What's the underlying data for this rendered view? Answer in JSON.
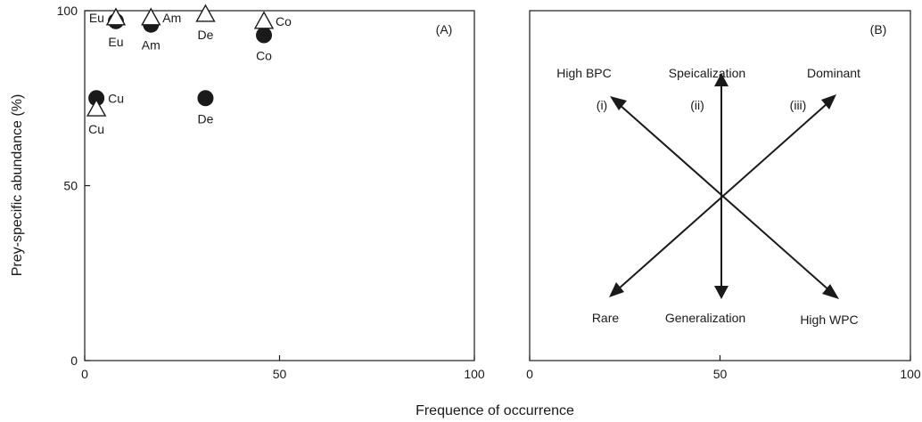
{
  "chart_data": [
    {
      "panel": "A",
      "type": "scatter",
      "panel_label": "(A)",
      "ylabel": "Prey-specific abundance (%)",
      "xlim": [
        0,
        100
      ],
      "ylim": [
        0,
        100
      ],
      "xticks": [
        0,
        50,
        100
      ],
      "yticks": [
        0,
        50,
        100
      ],
      "series": [
        {
          "marker": "filled-circle",
          "points": [
            {
              "label": "Eu",
              "x": 8,
              "y": 97,
              "label_pos": "below"
            },
            {
              "label": "Am",
              "x": 17,
              "y": 96,
              "label_pos": "below"
            },
            {
              "label": "Co",
              "x": 46,
              "y": 93,
              "label_pos": "below"
            },
            {
              "label": "Cu",
              "x": 3,
              "y": 75,
              "label_pos": "right"
            },
            {
              "label": "De",
              "x": 31,
              "y": 75,
              "label_pos": "below"
            }
          ]
        },
        {
          "marker": "open-triangle",
          "points": [
            {
              "label": "Eu",
              "x": 8,
              "y": 98,
              "label_pos": "left"
            },
            {
              "label": "Am",
              "x": 17,
              "y": 98,
              "label_pos": "right"
            },
            {
              "label": "De",
              "x": 31,
              "y": 99,
              "label_pos": "below"
            },
            {
              "label": "Co",
              "x": 46,
              "y": 97,
              "label_pos": "right"
            },
            {
              "label": "Cu",
              "x": 3,
              "y": 72,
              "label_pos": "below"
            }
          ]
        }
      ]
    },
    {
      "panel": "B",
      "type": "diagram",
      "panel_label": "(B)",
      "xlim": [
        0,
        100
      ],
      "xticks": [
        0,
        50,
        100
      ],
      "corner_labels": {
        "top_left": "High BPC",
        "top_center": "Speicalization",
        "top_right": "Dominant",
        "bottom_left": "Rare",
        "bottom_center": "Generalization",
        "bottom_right": "High WPC"
      },
      "roman_labels": [
        "(i)",
        "(ii)",
        "(iii)"
      ]
    }
  ],
  "shared_xlabel": "Frequence of occurrence"
}
